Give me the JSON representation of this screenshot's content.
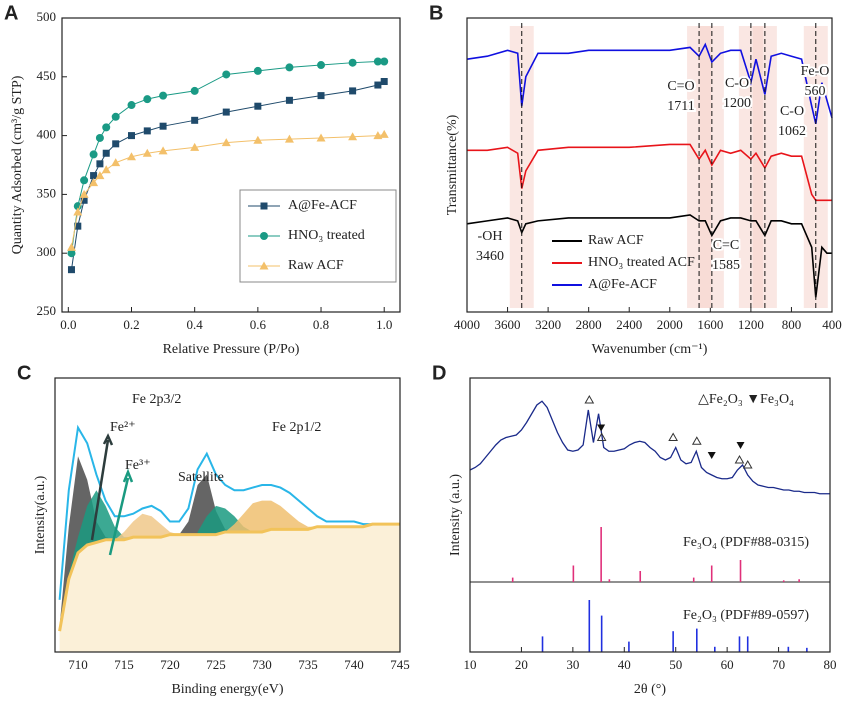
{
  "chart_data": [
    {
      "type": "line",
      "label": "A",
      "xlabel": "Relative Pressure (P/Po)",
      "ylabel": "Quantity Adsorbed (cm³/g STP)",
      "xlim": [
        -0.02,
        1.05
      ],
      "ylim": [
        250,
        500
      ],
      "xticks": [
        {
          "value": 0,
          "label": "0.0"
        },
        0.2,
        0.4,
        0.6,
        0.8,
        {
          "value": 1,
          "label": "1.0"
        }
      ],
      "yticks": [
        250,
        300,
        350,
        400,
        450,
        500
      ],
      "legend_position": "center right",
      "x": [
        0.01,
        0.03,
        0.05,
        0.08,
        0.1,
        0.12,
        0.15,
        0.2,
        0.25,
        0.3,
        0.4,
        0.5,
        0.6,
        0.7,
        0.8,
        0.9,
        0.98,
        1.0
      ],
      "series": [
        {
          "name": "A@Fe-ACF",
          "color": "#1f4a6b",
          "marker": "square",
          "values": [
            286,
            323,
            345,
            366,
            376,
            385,
            393,
            400,
            404,
            408,
            413,
            420,
            425,
            430,
            434,
            438,
            443,
            446
          ]
        },
        {
          "name": "HNO₃ treated",
          "color": "#1a9a85",
          "marker": "circle",
          "values": [
            300,
            340,
            362,
            384,
            398,
            407,
            416,
            426,
            431,
            434,
            438,
            452,
            455,
            458,
            460,
            462,
            463,
            463
          ]
        },
        {
          "name": "Raw ACF",
          "color": "#f3c06a",
          "marker": "triangle",
          "values": [
            305,
            335,
            350,
            360,
            366,
            371,
            377,
            382,
            385,
            387,
            390,
            394,
            396,
            397,
            398,
            399,
            400,
            401
          ]
        }
      ]
    },
    {
      "type": "spectrum",
      "label": "B",
      "xlabel": "Wavenumber (cm⁻¹)",
      "ylabel": "Transmittance(%)",
      "xlim": [
        4000,
        400
      ],
      "ylim": [
        0,
        100
      ],
      "xticks": [
        4000,
        3600,
        3200,
        2800,
        2400,
        2000,
        1600,
        1200,
        800,
        400
      ],
      "x": [
        4000,
        3800,
        3600,
        3500,
        3460,
        3420,
        3300,
        3000,
        2800,
        2400,
        2000,
        1800,
        1711,
        1650,
        1585,
        1500,
        1400,
        1300,
        1200,
        1150,
        1062,
        1000,
        900,
        800,
        700,
        600,
        560,
        500,
        450,
        400
      ],
      "series": [
        {
          "name": "Raw ACF",
          "color": "#000000",
          "values": [
            30,
            31,
            32,
            31,
            27,
            30,
            31,
            32,
            32,
            32,
            32,
            33,
            31,
            31,
            26,
            31,
            32,
            32,
            31,
            31,
            26,
            31,
            31,
            30,
            30,
            22,
            5,
            22,
            20,
            20
          ]
        },
        {
          "name": "HNO₃ treated ACF",
          "color": "#e8141a",
          "values": [
            55,
            55,
            56,
            54,
            42,
            48,
            55,
            56,
            56,
            56,
            57,
            57,
            52,
            55,
            50,
            55,
            54,
            55,
            52,
            54,
            49,
            53,
            54,
            53,
            53,
            40,
            38,
            38,
            38,
            38
          ]
        },
        {
          "name": "A@Fe-ACF",
          "color": "#1010e0",
          "values": [
            86,
            87,
            89,
            88,
            70,
            80,
            88,
            88,
            89,
            89,
            89,
            90,
            87,
            91,
            85,
            88,
            89,
            89,
            78,
            86,
            74,
            87,
            88,
            87,
            86,
            70,
            64,
            78,
            72,
            66
          ]
        }
      ],
      "peaks": [
        {
          "group": "-OH",
          "wavenumber": 3460
        },
        {
          "group": "C=O",
          "wavenumber": 1711
        },
        {
          "group": "C=C",
          "wavenumber": 1585
        },
        {
          "group": "C-O",
          "wavenumber": 1200
        },
        {
          "group": "C-O",
          "wavenumber": 1062
        },
        {
          "group": "Fe-O",
          "wavenumber": 560
        }
      ]
    },
    {
      "type": "xps",
      "label": "C",
      "xlabel": "Binding energy(eV)",
      "ylabel": "Intensity(a.u.)",
      "xlim": [
        707.5,
        745
      ],
      "ylim": [
        0,
        105
      ],
      "xticks": [
        710,
        715,
        720,
        725,
        730,
        735,
        740,
        745
      ],
      "annotations": [
        "Fe 2p3/2",
        "Fe²⁺",
        "Fe³⁺",
        "Satellite",
        "Fe 2p1/2"
      ],
      "x": [
        708,
        709,
        710,
        711,
        712,
        713,
        714,
        715,
        716,
        717,
        718,
        719,
        720,
        721,
        722,
        723,
        724,
        725,
        726,
        727,
        728,
        729,
        730,
        731,
        732,
        733,
        734,
        735,
        736,
        737,
        738,
        739,
        740,
        741,
        742,
        743,
        744,
        745
      ],
      "envelope": {
        "color": "#29b6e8",
        "values": [
          20,
          62,
          86,
          80,
          68,
          58,
          52,
          52,
          53,
          55,
          56,
          54,
          50,
          50,
          55,
          70,
          76,
          68,
          64,
          62,
          62,
          63,
          64,
          64,
          63,
          61,
          58,
          55,
          52,
          50,
          50,
          50,
          50,
          49,
          49,
          49,
          49,
          49
        ]
      },
      "background": {
        "color": "#f2c35a",
        "values": [
          8,
          28,
          38,
          41,
          42,
          43,
          43,
          43,
          44,
          44,
          44,
          44,
          45,
          45,
          45,
          45,
          45,
          45,
          46,
          46,
          46,
          46,
          46,
          47,
          47,
          47,
          47,
          47,
          48,
          48,
          48,
          48,
          48,
          48,
          49,
          49,
          49,
          49
        ]
      },
      "components": [
        {
          "color": "#4a4a4a",
          "x": [
            708,
            709,
            710,
            711,
            712,
            713,
            714
          ],
          "values": [
            10,
            48,
            75,
            66,
            50,
            44,
            43
          ]
        },
        {
          "color": "#1a9a80",
          "x": [
            709,
            710,
            711,
            712,
            713,
            714,
            715,
            716
          ],
          "values": [
            30,
            44,
            56,
            62,
            56,
            48,
            44,
            44
          ]
        },
        {
          "color": "#f0c88a",
          "x": [
            714,
            715,
            716,
            717,
            718,
            719,
            720,
            721
          ],
          "values": [
            43,
            46,
            50,
            53,
            52,
            49,
            46,
            45
          ]
        },
        {
          "color": "#4a4a4a",
          "x": [
            721,
            722,
            723,
            724,
            725,
            726,
            727
          ],
          "values": [
            45,
            50,
            64,
            68,
            54,
            47,
            46
          ]
        },
        {
          "color": "#1a9a80",
          "x": [
            723,
            724,
            725,
            726,
            727,
            728,
            729
          ],
          "values": [
            46,
            52,
            56,
            55,
            52,
            48,
            46
          ]
        },
        {
          "color": "#f0c070",
          "x": [
            726,
            727,
            728,
            729,
            730,
            731,
            732,
            733,
            734,
            735,
            736
          ],
          "values": [
            46,
            49,
            53,
            57,
            58,
            58,
            56,
            53,
            50,
            48,
            48
          ]
        }
      ]
    },
    {
      "type": "xrd",
      "label": "D",
      "xlabel": "2θ (°)",
      "ylabel": "Intensity (a.u.)",
      "legend_text": "△Fe₂O₃ ▼Fe₃O₄",
      "xlim": [
        10,
        80
      ],
      "ylim": [
        0,
        100
      ],
      "xticks": [
        10,
        20,
        30,
        40,
        50,
        60,
        70,
        80
      ],
      "color": "#1a2a8a",
      "x": [
        10,
        11,
        12,
        13,
        14,
        15,
        16,
        17,
        18,
        19,
        20,
        21,
        22,
        23,
        24,
        25,
        26,
        27,
        28,
        29,
        30,
        31,
        32,
        33,
        34,
        35,
        36,
        37,
        38,
        39,
        40,
        41,
        42,
        43,
        44,
        45,
        46,
        47,
        48,
        49,
        50,
        51,
        52,
        53,
        54,
        55,
        56,
        57,
        58,
        59,
        60,
        61,
        62,
        63,
        64,
        65,
        66,
        67,
        68,
        69,
        70,
        71,
        72,
        73,
        74,
        75,
        76,
        77,
        78,
        79,
        80
      ],
      "values": [
        40,
        42,
        45,
        50,
        55,
        60,
        64,
        66,
        67,
        68,
        72,
        78,
        85,
        92,
        95,
        90,
        80,
        70,
        62,
        56,
        55,
        56,
        60,
        88,
        62,
        85,
        58,
        55,
        55,
        56,
        57,
        60,
        62,
        63,
        62,
        58,
        55,
        50,
        48,
        50,
        58,
        48,
        45,
        46,
        55,
        42,
        38,
        36,
        34,
        33,
        33,
        34,
        40,
        44,
        36,
        31,
        28,
        27,
        26,
        26,
        25,
        24,
        24,
        23,
        23,
        22,
        22,
        22,
        21,
        21,
        21
      ],
      "fe2o3_peaks": [
        33.2,
        35.6,
        49.5,
        54.1,
        62.4,
        64.0
      ],
      "fe3o4_peaks": [
        35.5,
        57.0,
        62.6
      ],
      "reference_ylim": [
        0,
        100
      ],
      "references": [
        {
          "label": "Fe₃O₄ (PDF#88-0315)",
          "color": "#e0307a",
          "positions": [
            18.3,
            30.1,
            35.5,
            37.1,
            43.1,
            53.5,
            57.0,
            62.6,
            71.0,
            74.0
          ],
          "intensities": [
            8,
            30,
            100,
            5,
            20,
            8,
            30,
            40,
            3,
            5
          ]
        },
        {
          "label": "Fe₂O₃ (PDF#89-0597)",
          "color": "#2030e0",
          "positions": [
            24.1,
            33.2,
            35.6,
            40.9,
            49.5,
            54.1,
            57.6,
            62.4,
            64.0,
            71.9,
            75.5
          ],
          "intensities": [
            30,
            100,
            70,
            20,
            40,
            45,
            10,
            30,
            30,
            10,
            8
          ]
        }
      ]
    }
  ]
}
